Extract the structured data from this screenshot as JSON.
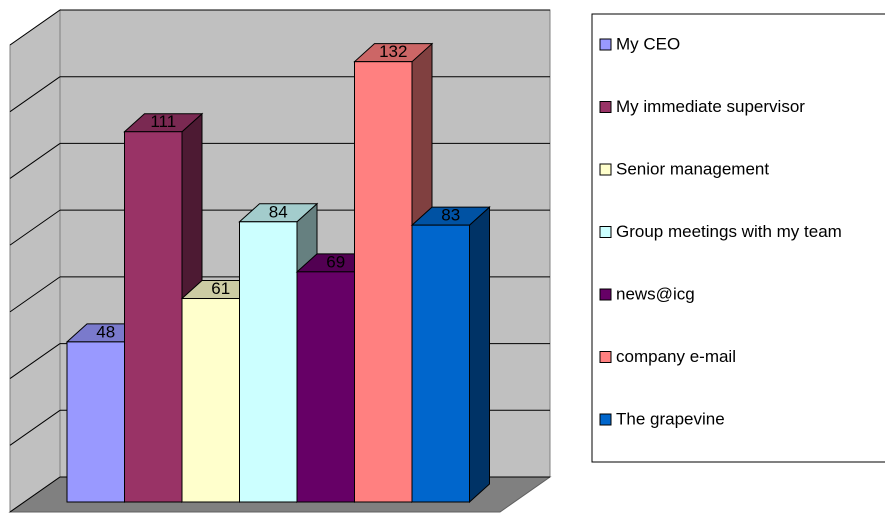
{
  "chart_data": {
    "type": "bar3d",
    "categories": [
      "My CEO",
      "My immediate supervisor",
      "Senior management",
      "Group meetings with my team",
      "news@icg",
      "company e-mail",
      "The grapevine"
    ],
    "values": [
      48,
      111,
      61,
      84,
      69,
      132,
      83
    ],
    "colors": [
      "#9999ff",
      "#993366",
      "#ffffcc",
      "#ccffff",
      "#660066",
      "#ff8080",
      "#0066cc"
    ],
    "ylim": [
      0,
      140
    ],
    "yticks": [
      0,
      20,
      40,
      60,
      80,
      100,
      120,
      140
    ],
    "grid": true,
    "legend": "right"
  }
}
